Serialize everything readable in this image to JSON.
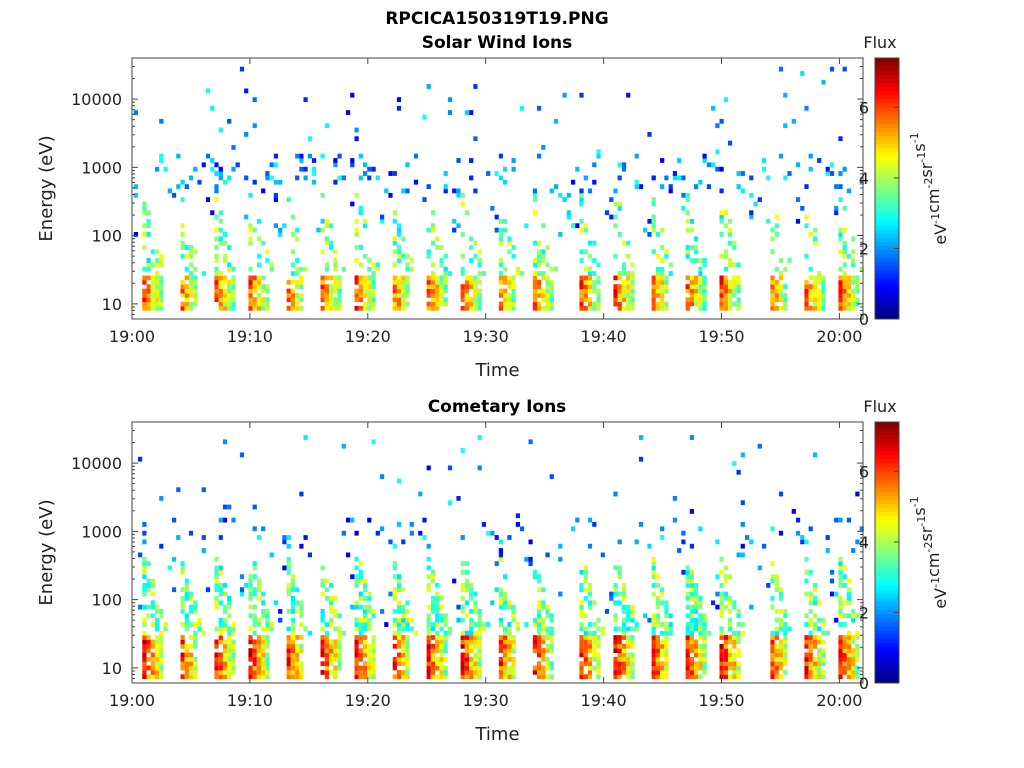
{
  "figure": {
    "filename_title": "RPCICA150319T19.PNG"
  },
  "chart_data": [
    {
      "type": "heatmap",
      "title": "Solar Wind Ions",
      "xlabel": "Time",
      "ylabel": "Energy (eV)",
      "y_scale": "log",
      "x_range": [
        "19:00",
        "20:02"
      ],
      "ylim": [
        6,
        40000
      ],
      "x_ticks": [
        "19:00",
        "19:10",
        "19:20",
        "19:30",
        "19:40",
        "19:50",
        "20:00"
      ],
      "y_ticks": [
        "10",
        "100",
        "1000",
        "10000"
      ],
      "colorbar": {
        "title": "Flux",
        "unit_base": [
          "eV",
          "cm",
          "sr",
          "s"
        ],
        "unit_exp": [
          "-1",
          "-2",
          "-1",
          "-1"
        ],
        "range": [
          0,
          7.4
        ],
        "ticks": [
          "0",
          "2",
          "4",
          "6"
        ],
        "colormap": "jet"
      },
      "bursts_times": [
        "19:01",
        "19:04",
        "19:07",
        "19:10",
        "19:13",
        "19:16",
        "19:19",
        "19:22",
        "19:25",
        "19:28",
        "19:31",
        "19:34",
        "19:38",
        "19:41",
        "19:44",
        "19:47",
        "19:50",
        "19:54",
        "19:57",
        "20:00"
      ],
      "main_band_energy": [
        8,
        25
      ],
      "main_band_flux_peak": 6.5,
      "scatter_energy_range": [
        100,
        35000
      ]
    },
    {
      "type": "heatmap",
      "title": "Cometary Ions",
      "xlabel": "Time",
      "ylabel": "Energy (eV)",
      "y_scale": "log",
      "x_range": [
        "19:00",
        "20:02"
      ],
      "ylim": [
        6,
        40000
      ],
      "x_ticks": [
        "19:00",
        "19:10",
        "19:20",
        "19:30",
        "19:40",
        "19:50",
        "20:00"
      ],
      "y_ticks": [
        "10",
        "100",
        "1000",
        "10000"
      ],
      "colorbar": {
        "title": "Flux",
        "unit_base": [
          "eV",
          "cm",
          "sr",
          "s"
        ],
        "unit_exp": [
          "-1",
          "-2",
          "-1",
          "-1"
        ],
        "range": [
          0,
          7.4
        ],
        "ticks": [
          "0",
          "2",
          "4",
          "6"
        ],
        "colormap": "jet"
      },
      "bursts_times": [
        "19:01",
        "19:04",
        "19:07",
        "19:10",
        "19:13",
        "19:16",
        "19:19",
        "19:22",
        "19:25",
        "19:28",
        "19:31",
        "19:34",
        "19:38",
        "19:41",
        "19:44",
        "19:47",
        "19:50",
        "19:54",
        "19:57",
        "20:00"
      ],
      "main_band_energy": [
        7,
        30
      ],
      "main_band_flux_peak": 7.0,
      "scatter_energy_range": [
        40,
        25000
      ]
    }
  ]
}
